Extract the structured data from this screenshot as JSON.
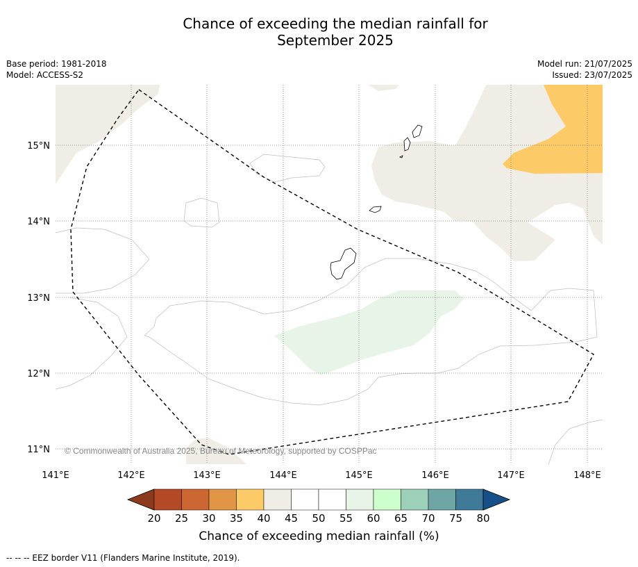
{
  "title_line1": "Chance of exceeding the median rainfall for",
  "title_line2": "September 2025",
  "meta_left": [
    "Base period: 1981-2018",
    "Model: ACCESS-S2"
  ],
  "meta_right": [
    "Model run: 21/07/2025",
    "Issued: 23/07/2025"
  ],
  "copyright": "© Commonwealth of Australia 2025, Bureau of Meteorology, supported by COSPPac",
  "lon_labels": [
    "141°E",
    "142°E",
    "143°E",
    "144°E",
    "145°E",
    "146°E",
    "147°E",
    "148°E"
  ],
  "lat_labels": [
    "15°N",
    "14°N",
    "13°N",
    "12°N",
    "11°N"
  ],
  "colorbar": {
    "title": "Chance of exceeding median rainfall (%)",
    "ticks": [
      "20",
      "25",
      "30",
      "35",
      "40",
      "45",
      "50",
      "55",
      "60",
      "65",
      "70",
      "75",
      "80"
    ],
    "colors": [
      "#8b3a1e",
      "#b34a25",
      "#cc6633",
      "#e09645",
      "#fcca66",
      "#f0ece6",
      "#ffffff",
      "#ffffff",
      "#e9f4e8",
      "#ccffcc",
      "#9cd0b8",
      "#6ea6a6",
      "#3f7a99",
      "#174f88"
    ]
  },
  "footer": "--  --  -- EEZ border V11 (Flanders Marine Institute, 2019)."
}
